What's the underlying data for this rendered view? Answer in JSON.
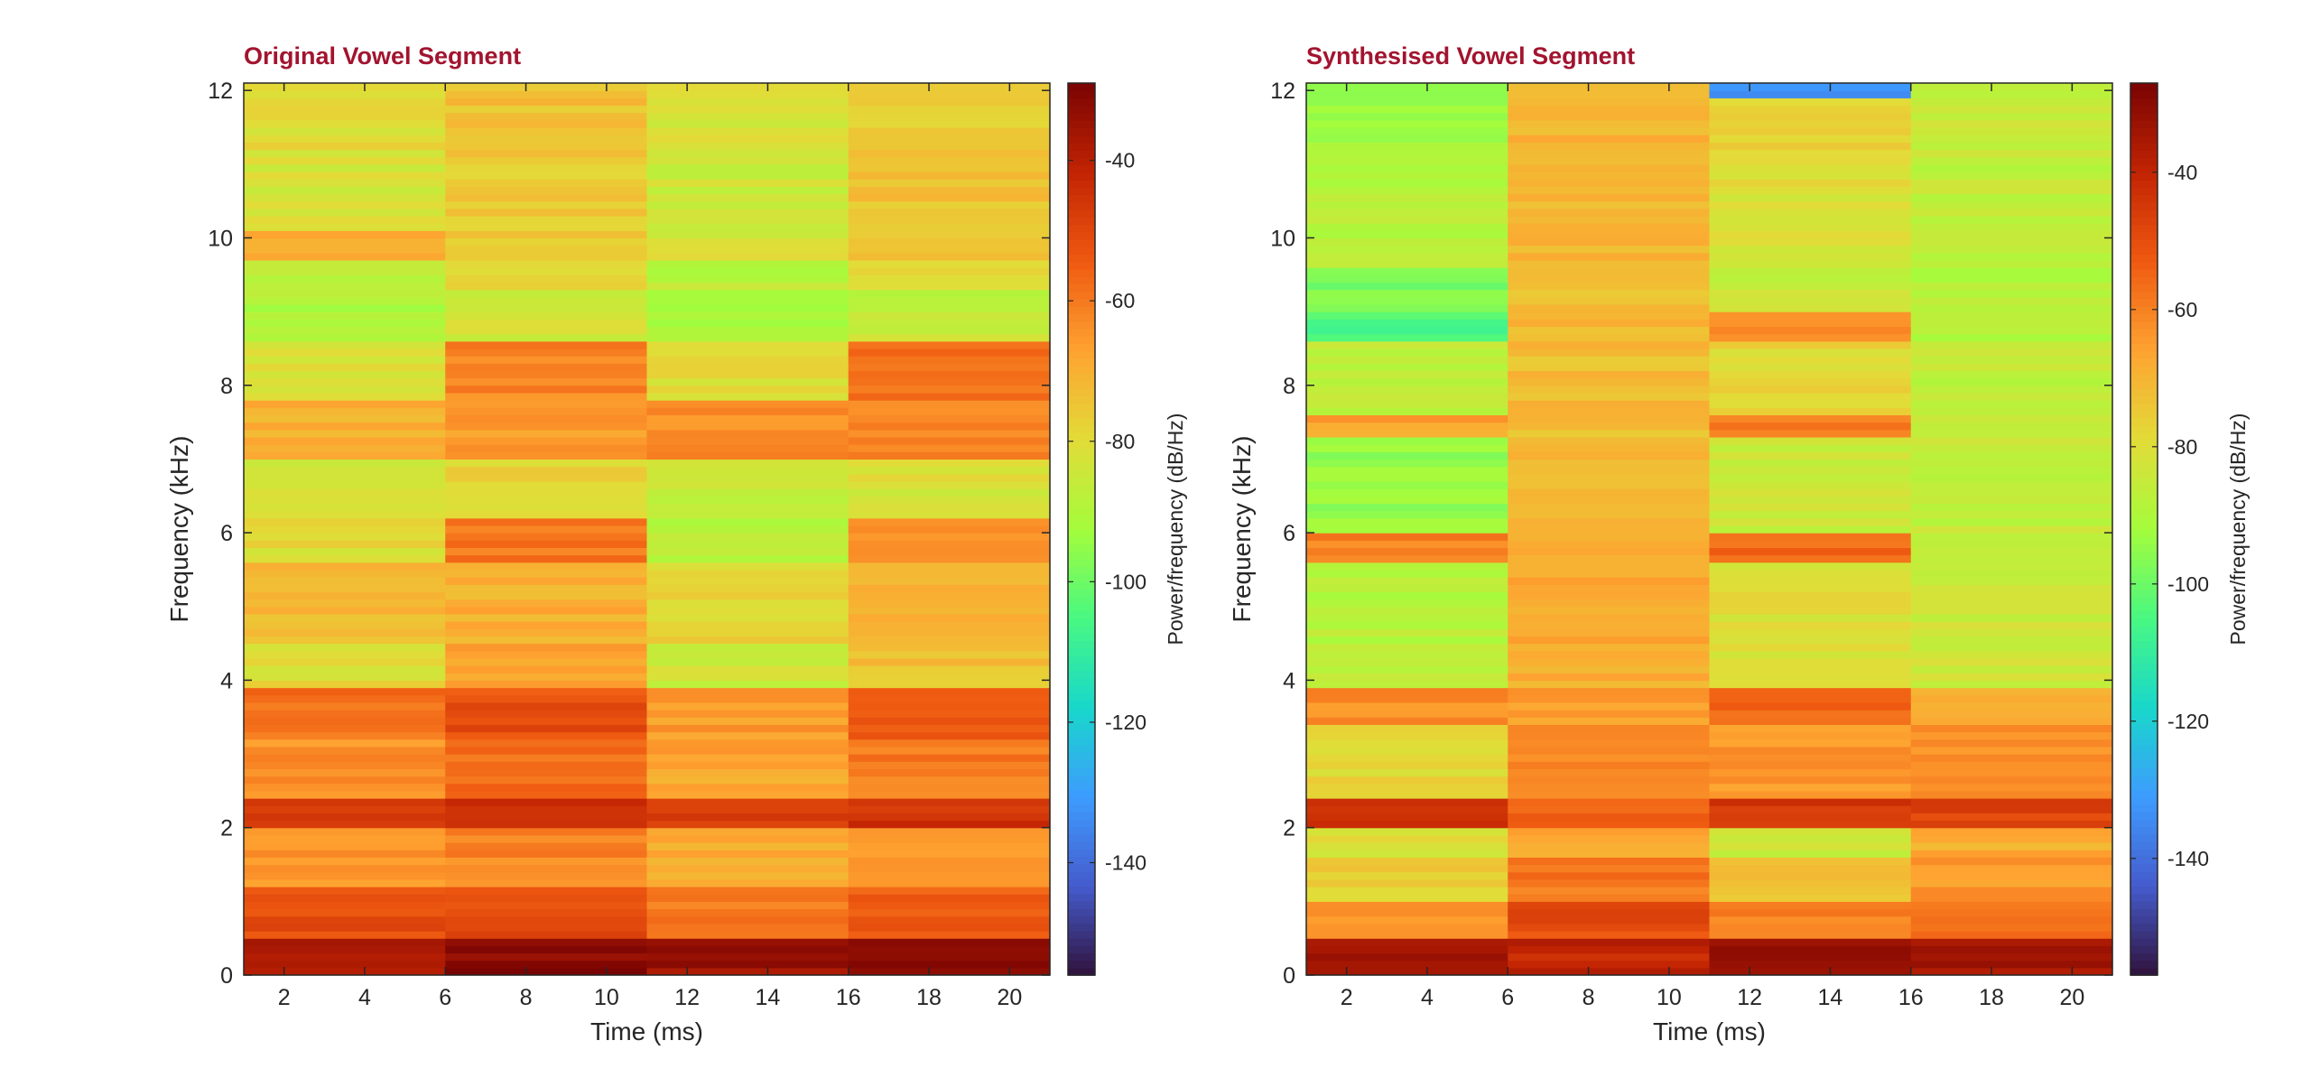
{
  "chart_data": [
    {
      "type": "heatmap",
      "title": "Original Vowel Segment",
      "xlabel": "Time (ms)",
      "ylabel": "Frequency (kHz)",
      "colorbar_label": "Power/frequency (dB/Hz)",
      "x_ticks": [
        2,
        4,
        6,
        8,
        10,
        12,
        14,
        16,
        18,
        20
      ],
      "y_ticks": [
        0,
        2,
        4,
        6,
        8,
        10,
        12
      ],
      "colorbar_ticks": [
        -40,
        -60,
        -80,
        -100,
        -120,
        -140
      ],
      "xlim": [
        1,
        21
      ],
      "ylim": [
        0,
        12.1
      ],
      "clim": [
        -156,
        -29
      ],
      "colormap": "turbo",
      "time_frames": [
        [
          1,
          6
        ],
        [
          6,
          11
        ],
        [
          11,
          16
        ],
        [
          16,
          21
        ]
      ],
      "frequency_bands_khz": [
        {
          "range": [
            0,
            0.5
          ],
          "values_db": [
            -36,
            -32,
            -35,
            -33
          ]
        },
        {
          "range": [
            0.5,
            1.2
          ],
          "values_db": [
            -52,
            -50,
            -60,
            -55
          ]
        },
        {
          "range": [
            1.2,
            2.0
          ],
          "values_db": [
            -64,
            -62,
            -68,
            -64
          ]
        },
        {
          "range": [
            2.0,
            2.4
          ],
          "values_db": [
            -46,
            -44,
            -48,
            -45
          ]
        },
        {
          "range": [
            2.4,
            3.2
          ],
          "values_db": [
            -64,
            -58,
            -68,
            -60
          ]
        },
        {
          "range": [
            3.2,
            3.9
          ],
          "values_db": [
            -58,
            -52,
            -66,
            -55
          ]
        },
        {
          "range": [
            3.9,
            4.5
          ],
          "values_db": [
            -80,
            -68,
            -84,
            -74
          ]
        },
        {
          "range": [
            4.5,
            5.6
          ],
          "values_db": [
            -72,
            -70,
            -78,
            -72
          ]
        },
        {
          "range": [
            5.6,
            6.2
          ],
          "values_db": [
            -80,
            -60,
            -88,
            -62
          ]
        },
        {
          "range": [
            6.2,
            7.0
          ],
          "values_db": [
            -84,
            -78,
            -86,
            -82
          ]
        },
        {
          "range": [
            7.0,
            7.8
          ],
          "values_db": [
            -70,
            -66,
            -64,
            -62
          ]
        },
        {
          "range": [
            7.8,
            8.6
          ],
          "values_db": [
            -82,
            -62,
            -80,
            -58
          ]
        },
        {
          "range": [
            8.6,
            9.3
          ],
          "values_db": [
            -90,
            -84,
            -90,
            -86
          ]
        },
        {
          "range": [
            9.3,
            9.7
          ],
          "values_db": [
            -86,
            -78,
            -88,
            -80
          ]
        },
        {
          "range": [
            9.7,
            10.1
          ],
          "values_db": [
            -68,
            -76,
            -82,
            -74
          ]
        },
        {
          "range": [
            10.1,
            11.2
          ],
          "values_db": [
            -82,
            -76,
            -84,
            -74
          ]
        },
        {
          "range": [
            11.2,
            12.1
          ],
          "values_db": [
            -80,
            -74,
            -82,
            -76
          ]
        }
      ]
    },
    {
      "type": "heatmap",
      "title": "Synthesised Vowel Segment",
      "xlabel": "Time (ms)",
      "ylabel": "Frequency (kHz)",
      "colorbar_label": "Power/frequency (dB/Hz)",
      "x_ticks": [
        2,
        4,
        6,
        8,
        10,
        12,
        14,
        16,
        18,
        20
      ],
      "y_ticks": [
        0,
        2,
        4,
        6,
        8,
        10,
        12
      ],
      "colorbar_ticks": [
        -40,
        -60,
        -80,
        -100,
        -120,
        -140
      ],
      "xlim": [
        1,
        21
      ],
      "ylim": [
        0,
        12.1
      ],
      "clim": [
        -157,
        -27
      ],
      "colormap": "turbo",
      "time_frames": [
        [
          1,
          6
        ],
        [
          6,
          11
        ],
        [
          11,
          16
        ],
        [
          16,
          21
        ]
      ],
      "frequency_bands_khz": [
        {
          "range": [
            0,
            0.5
          ],
          "values_db": [
            -33,
            -40,
            -30,
            -35
          ]
        },
        {
          "range": [
            0.5,
            1.0
          ],
          "values_db": [
            -64,
            -50,
            -60,
            -58
          ]
        },
        {
          "range": [
            1.0,
            1.6
          ],
          "values_db": [
            -76,
            -58,
            -74,
            -64
          ]
        },
        {
          "range": [
            1.6,
            2.0
          ],
          "values_db": [
            -80,
            -68,
            -84,
            -68
          ]
        },
        {
          "range": [
            2.0,
            2.4
          ],
          "values_db": [
            -44,
            -54,
            -44,
            -48
          ]
        },
        {
          "range": [
            2.4,
            3.4
          ],
          "values_db": [
            -78,
            -62,
            -64,
            -64
          ]
        },
        {
          "range": [
            3.4,
            3.9
          ],
          "values_db": [
            -62,
            -66,
            -54,
            -70
          ]
        },
        {
          "range": [
            3.9,
            5.6
          ],
          "values_db": [
            -88,
            -68,
            -80,
            -84
          ]
        },
        {
          "range": [
            5.6,
            6.0
          ],
          "values_db": [
            -60,
            -70,
            -56,
            -86
          ]
        },
        {
          "range": [
            6.0,
            7.3
          ],
          "values_db": [
            -94,
            -72,
            -84,
            -86
          ]
        },
        {
          "range": [
            7.3,
            7.6
          ],
          "values_db": [
            -66,
            -72,
            -58,
            -84
          ]
        },
        {
          "range": [
            7.6,
            8.6
          ],
          "values_db": [
            -86,
            -72,
            -78,
            -86
          ]
        },
        {
          "range": [
            8.6,
            9.0
          ],
          "values_db": [
            -104,
            -70,
            -60,
            -88
          ]
        },
        {
          "range": [
            9.0,
            9.6
          ],
          "values_db": [
            -98,
            -72,
            -84,
            -88
          ]
        },
        {
          "range": [
            9.6,
            11.0
          ],
          "values_db": [
            -88,
            -70,
            -80,
            -86
          ]
        },
        {
          "range": [
            11.0,
            11.9
          ],
          "values_db": [
            -92,
            -70,
            -78,
            -84
          ]
        },
        {
          "range": [
            11.9,
            12.1
          ],
          "values_db": [
            -94,
            -72,
            -132,
            -88
          ]
        }
      ]
    }
  ]
}
